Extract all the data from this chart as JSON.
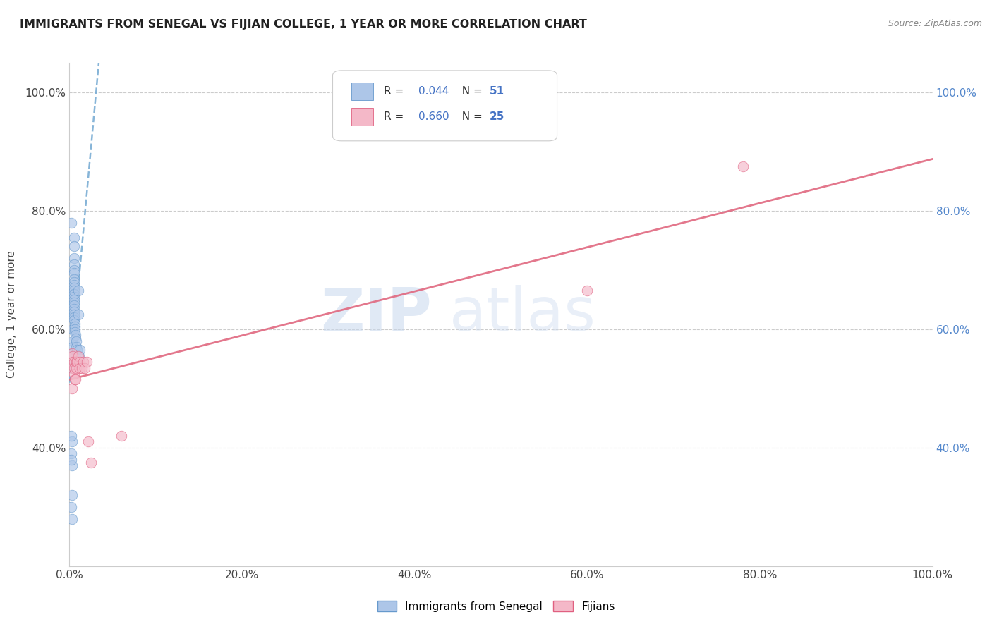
{
  "title": "IMMIGRANTS FROM SENEGAL VS FIJIAN COLLEGE, 1 YEAR OR MORE CORRELATION CHART",
  "source": "Source: ZipAtlas.com",
  "ylabel": "College, 1 year or more",
  "legend_label1": "Immigrants from Senegal",
  "legend_label2": "Fijians",
  "R1": 0.044,
  "N1": 51,
  "R2": 0.66,
  "N2": 25,
  "color1": "#adc6e8",
  "color1_edge": "#6699cc",
  "color2": "#f4b8c8",
  "color2_edge": "#e06080",
  "line1_color": "#7aadd4",
  "line2_color": "#e06880",
  "watermark_zip": "ZIP",
  "watermark_atlas": "atlas",
  "xlim": [
    0.0,
    1.0
  ],
  "ylim": [
    0.2,
    1.05
  ],
  "xticks": [
    0.0,
    0.2,
    0.4,
    0.6,
    0.8,
    1.0
  ],
  "yticks": [
    0.4,
    0.6,
    0.8,
    1.0
  ],
  "xticklabels": [
    "0.0%",
    "20.0%",
    "40.0%",
    "60.0%",
    "80.0%",
    "100.0%"
  ],
  "yticklabels_left": [
    "40.0%",
    "60.0%",
    "80.0%",
    "100.0%"
  ],
  "yticklabels_right": [
    "40.0%",
    "60.0%",
    "80.0%",
    "100.0%"
  ],
  "senegal_x": [
    0.002,
    0.002,
    0.002,
    0.003,
    0.003,
    0.003,
    0.003,
    0.004,
    0.004,
    0.004,
    0.004,
    0.004,
    0.004,
    0.004,
    0.005,
    0.005,
    0.005,
    0.005,
    0.005,
    0.005,
    0.005,
    0.005,
    0.005,
    0.005,
    0.005,
    0.005,
    0.005,
    0.005,
    0.005,
    0.005,
    0.005,
    0.005,
    0.005,
    0.005,
    0.005,
    0.006,
    0.006,
    0.006,
    0.006,
    0.007,
    0.007,
    0.008,
    0.008,
    0.009,
    0.01,
    0.01,
    0.011,
    0.012,
    0.003,
    0.002,
    0.002
  ],
  "senegal_y": [
    0.78,
    0.39,
    0.3,
    0.41,
    0.37,
    0.32,
    0.28,
    0.66,
    0.64,
    0.62,
    0.6,
    0.58,
    0.57,
    0.56,
    0.755,
    0.74,
    0.72,
    0.71,
    0.7,
    0.695,
    0.685,
    0.68,
    0.675,
    0.67,
    0.665,
    0.66,
    0.655,
    0.65,
    0.645,
    0.64,
    0.635,
    0.63,
    0.625,
    0.62,
    0.615,
    0.61,
    0.605,
    0.6,
    0.595,
    0.59,
    0.585,
    0.58,
    0.57,
    0.565,
    0.665,
    0.625,
    0.555,
    0.565,
    0.54,
    0.42,
    0.38
  ],
  "fijian_x": [
    0.003,
    0.003,
    0.004,
    0.004,
    0.004,
    0.005,
    0.005,
    0.005,
    0.006,
    0.007,
    0.008,
    0.008,
    0.009,
    0.01,
    0.012,
    0.012,
    0.014,
    0.016,
    0.018,
    0.02,
    0.022,
    0.025,
    0.06,
    0.6,
    0.78
  ],
  "fijian_y": [
    0.56,
    0.5,
    0.555,
    0.545,
    0.535,
    0.545,
    0.535,
    0.525,
    0.515,
    0.515,
    0.545,
    0.535,
    0.545,
    0.555,
    0.545,
    0.535,
    0.535,
    0.545,
    0.535,
    0.545,
    0.41,
    0.375,
    0.42,
    0.665,
    0.875
  ]
}
